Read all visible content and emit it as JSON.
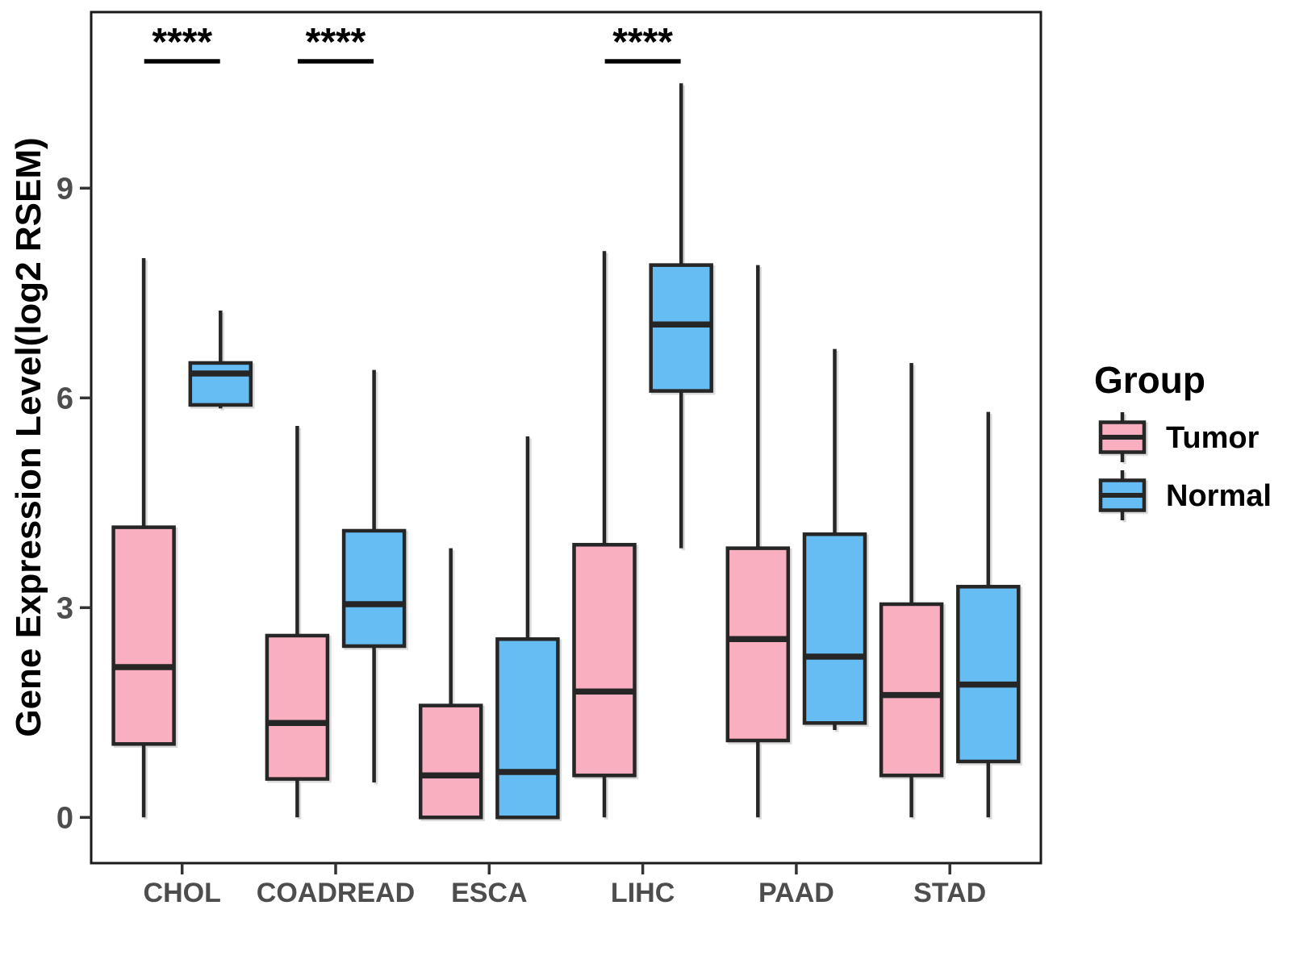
{
  "chart_data": {
    "type": "boxplot",
    "title": "",
    "xlabel": "",
    "ylabel": "Gene Expression Level(log2 RSEM)",
    "ylim": [
      -0.65,
      11.55
    ],
    "yticks": [
      0,
      3,
      6,
      9
    ],
    "grid": false,
    "legend_position": "right",
    "categories": [
      "CHOL",
      "COADREAD",
      "ESCA",
      "LIHC",
      "PAAD",
      "STAD"
    ],
    "series": [
      {
        "name": "Tumor",
        "fill_color": "#FAAFC1",
        "boxes": [
          {
            "category": "CHOL",
            "whisker_low": 0,
            "q1": 1.05,
            "median": 2.15,
            "q3": 4.15,
            "whisker_high": 8.0
          },
          {
            "category": "COADREAD",
            "whisker_low": 0,
            "q1": 0.55,
            "median": 1.35,
            "q3": 2.6,
            "whisker_high": 5.6
          },
          {
            "category": "ESCA",
            "whisker_low": 0,
            "q1": 0,
            "median": 0.6,
            "q3": 1.6,
            "whisker_high": 3.85
          },
          {
            "category": "LIHC",
            "whisker_low": 0,
            "q1": 0.6,
            "median": 1.8,
            "q3": 3.9,
            "whisker_high": 8.1
          },
          {
            "category": "PAAD",
            "whisker_low": 0,
            "q1": 1.1,
            "median": 2.55,
            "q3": 3.85,
            "whisker_high": 7.9
          },
          {
            "category": "STAD",
            "whisker_low": 0,
            "q1": 0.6,
            "median": 1.75,
            "q3": 3.05,
            "whisker_high": 6.5
          }
        ]
      },
      {
        "name": "Normal",
        "fill_color": "#66BDF4",
        "boxes": [
          {
            "category": "CHOL",
            "whisker_low": 5.85,
            "q1": 5.9,
            "median": 6.35,
            "q3": 6.5,
            "whisker_high": 7.25
          },
          {
            "category": "COADREAD",
            "whisker_low": 0.5,
            "q1": 2.45,
            "median": 3.05,
            "q3": 4.1,
            "whisker_high": 6.4
          },
          {
            "category": "ESCA",
            "whisker_low": 0,
            "q1": 0,
            "median": 0.65,
            "q3": 2.55,
            "whisker_high": 5.45
          },
          {
            "category": "LIHC",
            "whisker_low": 3.85,
            "q1": 6.1,
            "median": 7.05,
            "q3": 7.9,
            "whisker_high": 10.5
          },
          {
            "category": "PAAD",
            "whisker_low": 1.25,
            "q1": 1.35,
            "median": 2.3,
            "q3": 4.05,
            "whisker_high": 6.7
          },
          {
            "category": "STAD",
            "whisker_low": 0,
            "q1": 0.8,
            "median": 1.9,
            "q3": 3.3,
            "whisker_high": 5.8
          }
        ]
      }
    ],
    "significance_annotations": [
      {
        "category": "CHOL",
        "label": "****"
      },
      {
        "category": "COADREAD",
        "label": "****"
      },
      {
        "category": "LIHC",
        "label": "****"
      }
    ]
  },
  "legend": {
    "title": "Group",
    "items": [
      {
        "label": "Tumor",
        "color": "#FAAFC1"
      },
      {
        "label": "Normal",
        "color": "#66BDF4"
      }
    ]
  },
  "style": {
    "box_border_color": "#252525",
    "median_color": "#252525",
    "whisker_color": "#252525",
    "panel_border_color": "#1a1a1a",
    "tick_color": "#333333",
    "axis_text_color": "#4d4d4d",
    "axis_title_color": "#000000",
    "significance_color": "#000000",
    "background": "#ffffff"
  }
}
